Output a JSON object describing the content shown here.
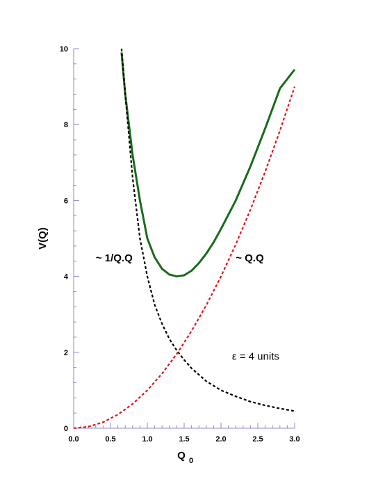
{
  "chart_data": {
    "type": "line",
    "xlabel": "Q",
    "xlabel_sub": "0",
    "ylabel": "V(Q)",
    "xlim": [
      0,
      3.0
    ],
    "ylim": [
      0,
      10
    ],
    "x_ticks": [
      "0.0",
      "0.5",
      "1.0",
      "1.5",
      "2.0",
      "2.5",
      "3.0"
    ],
    "y_ticks": [
      "0",
      "2",
      "4",
      "6",
      "8",
      "10"
    ],
    "grid": false,
    "colors": {
      "total": "#1a6b1a",
      "inverse": "#000000",
      "quadratic": "#e0161b",
      "axis": "#8888cc"
    },
    "series": [
      {
        "style": "solid",
        "x": [
          0.65,
          0.7,
          0.8,
          0.9,
          1.0,
          1.1,
          1.2,
          1.3,
          1.4,
          1.5,
          1.6,
          1.7,
          1.8,
          1.9,
          2.0,
          2.2,
          2.4,
          2.6,
          2.8,
          3.0
        ],
        "y": [
          9.9,
          8.8,
          7.2,
          6.0,
          5.0,
          4.5,
          4.2,
          4.05,
          4.0,
          4.03,
          4.15,
          4.35,
          4.6,
          4.9,
          5.25,
          6.0,
          6.9,
          7.9,
          8.95,
          9.45
        ]
      },
      {
        "style": "dashed",
        "x": [
          0.65,
          0.7,
          0.8,
          0.9,
          1.0,
          1.1,
          1.2,
          1.3,
          1.4,
          1.5,
          1.6,
          1.8,
          2.0,
          2.2,
          2.4,
          2.6,
          2.8,
          3.0
        ],
        "y": [
          10.0,
          8.8,
          6.6,
          5.0,
          4.0,
          3.25,
          2.75,
          2.35,
          2.05,
          1.8,
          1.58,
          1.24,
          1.0,
          0.84,
          0.7,
          0.6,
          0.52,
          0.45
        ]
      },
      {
        "style": "dashed",
        "x": [
          0.0,
          0.2,
          0.4,
          0.6,
          0.8,
          1.0,
          1.2,
          1.4,
          1.6,
          1.8,
          2.0,
          2.2,
          2.4,
          2.6,
          2.8,
          3.0
        ],
        "y": [
          0.0,
          0.04,
          0.16,
          0.36,
          0.64,
          1.0,
          1.44,
          1.96,
          2.56,
          3.24,
          4.0,
          4.84,
          5.76,
          6.76,
          7.84,
          9.0
        ]
      }
    ],
    "annotations": [
      {
        "text": "~ 1/Q.Q",
        "x": 0.3,
        "y": 4.4,
        "weight": "bold"
      },
      {
        "text": "~ Q.Q",
        "x": 2.2,
        "y": 4.4,
        "weight": "bold"
      },
      {
        "text": "ε = 4 units",
        "x": 2.15,
        "y": 1.8,
        "weight": "normal"
      }
    ]
  }
}
